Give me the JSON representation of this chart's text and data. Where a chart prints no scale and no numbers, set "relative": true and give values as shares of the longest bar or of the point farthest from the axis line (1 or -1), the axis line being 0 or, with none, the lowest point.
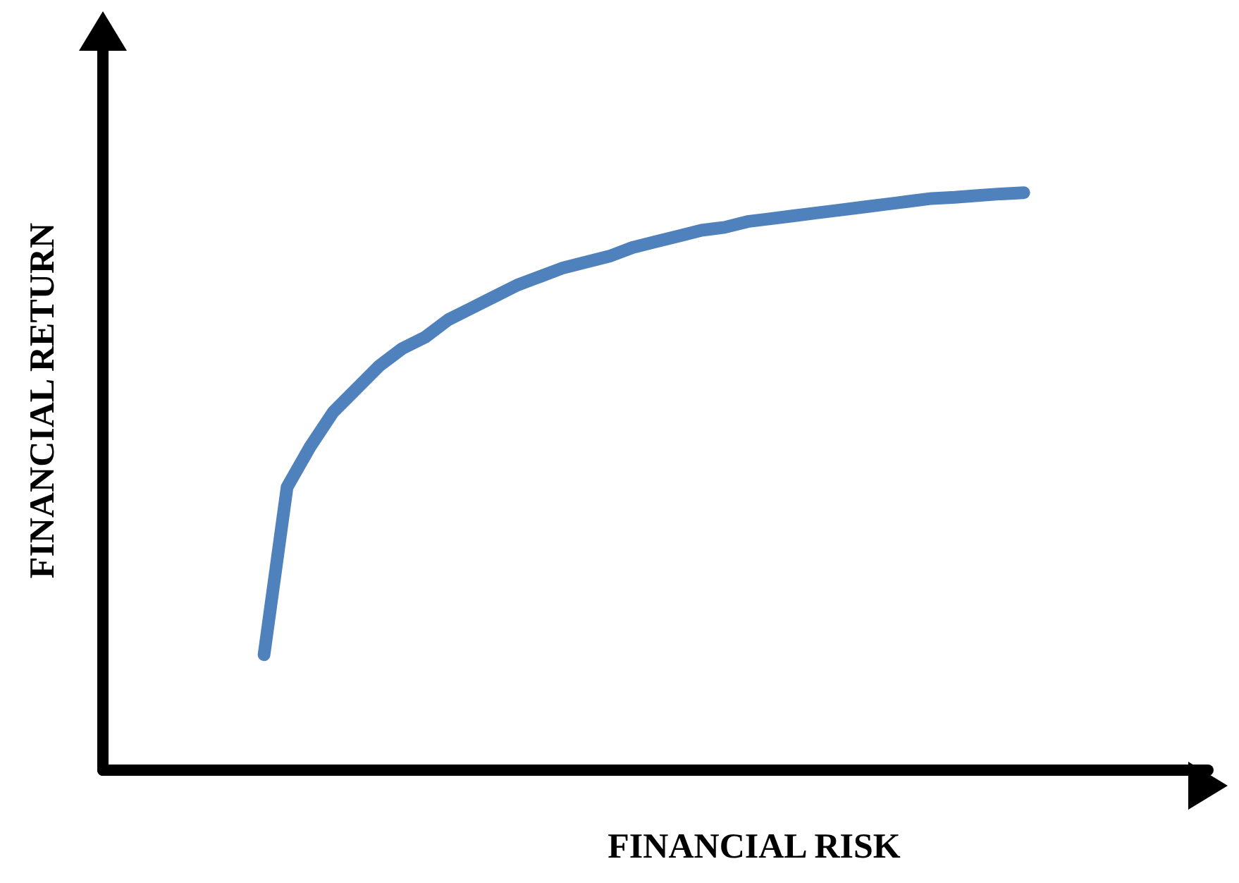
{
  "chart_data": {
    "type": "line",
    "xlabel": "FINANCIAL RISK",
    "ylabel": "FINANCIAL RETURN",
    "relative": true,
    "color": "#4f81bd",
    "categories": [
      null,
      null,
      null,
      null,
      null,
      null,
      null,
      null,
      null,
      null,
      null,
      null,
      null,
      null,
      null,
      null,
      null,
      null,
      null,
      null,
      null,
      null,
      null,
      null,
      null,
      null,
      null,
      null,
      null,
      null,
      null,
      null,
      null,
      null,
      null,
      null,
      null,
      null,
      null,
      null,
      null,
      null,
      null,
      null,
      null,
      null,
      null,
      null,
      null
    ],
    "values": [
      null,
      null,
      null,
      null,
      null,
      null,
      null,
      0.2,
      0.49,
      0.56,
      0.62,
      0.66,
      0.7,
      0.73,
      0.75,
      0.78,
      0.8,
      0.82,
      0.84,
      0.855,
      0.87,
      0.88,
      0.89,
      0.905,
      0.915,
      0.925,
      0.935,
      0.94,
      0.95,
      0.955,
      0.96,
      0.965,
      0.97,
      0.975,
      0.98,
      0.985,
      0.99,
      0.992,
      0.995,
      0.998,
      1,
      null,
      null,
      null,
      null,
      null,
      null,
      null,
      null
    ]
  }
}
